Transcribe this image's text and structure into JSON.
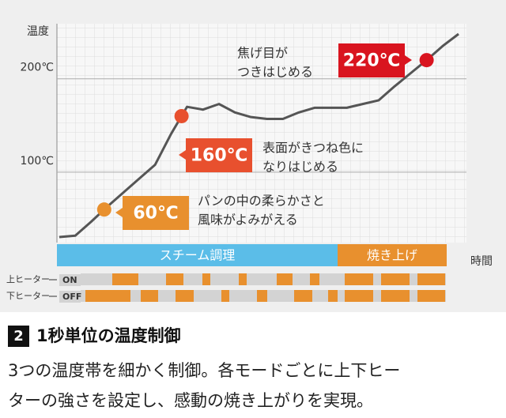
{
  "chart_data": {
    "type": "line",
    "ylabel": "温度",
    "xlabel": "時間",
    "values": [
      30.5,
      32,
      47,
      63,
      78,
      93,
      108,
      141,
      170,
      167,
      173,
      164,
      159,
      157,
      157,
      164,
      169,
      169,
      169,
      173,
      177,
      192,
      206,
      220,
      235,
      248
    ],
    "color": "#555555",
    "ylim": [
      24.6,
      259
    ],
    "yticks": [
      {
        "value": 100,
        "label": "100℃"
      },
      {
        "value": 200,
        "label": "200℃"
      }
    ],
    "grid": true,
    "markers": {
      "values": [
        60,
        160,
        220
      ],
      "value_labels": [
        "60℃",
        "160℃",
        "220℃"
      ],
      "colors": [
        "#e8902e",
        "#e8502e",
        "#d9141f"
      ],
      "notes": [
        [
          "パンの中の柔らかさと",
          "風味がよみがえる"
        ],
        [
          "表面がきつね色に",
          "なりはじめる"
        ],
        [
          "焦げ目が",
          "つきはじめる"
        ]
      ]
    },
    "phases": [
      {
        "label": "スチーム調理",
        "color": "#5bbde8"
      },
      {
        "label": "焼き上げ",
        "color": "#e8902e"
      }
    ],
    "heaters": [
      {
        "name": "上ヒーター",
        "state": "ON"
      },
      {
        "name": "下ヒーター",
        "state": "OFF"
      }
    ]
  },
  "section": {
    "number": "2",
    "heading": "1秒単位の温度制御",
    "body": [
      "3つの温度帯を細かく制御。各モードごとに上下ヒー",
      "ターの強さを設定し、感動の焼き上がりを実現。"
    ]
  }
}
